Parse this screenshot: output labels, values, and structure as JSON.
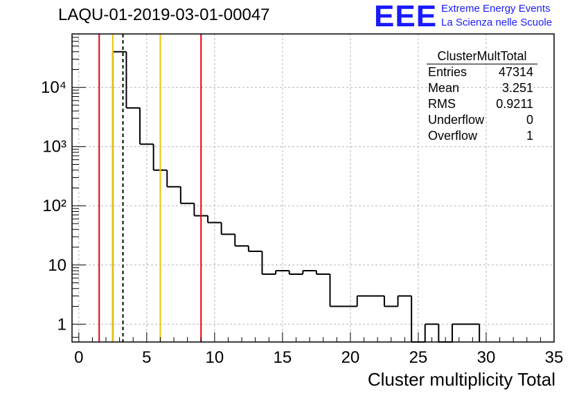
{
  "run_title": "LAQU-01-2019-03-01-00047",
  "logo": {
    "mark": "EEE",
    "line1": "Extreme Energy Events",
    "line2": "La Scienza nelle Scuole"
  },
  "stats_box": {
    "name": "ClusterMultTotal",
    "rows": [
      {
        "label": "Entries",
        "value": "47314"
      },
      {
        "label": "Mean",
        "value": "3.251"
      },
      {
        "label": "RMS",
        "value": "0.9211"
      },
      {
        "label": "Underflow",
        "value": "0"
      },
      {
        "label": "Overflow",
        "value": "1"
      }
    ]
  },
  "colors": {
    "histogram": "#000000",
    "red_line": "#e8000b",
    "yellow_line": "#f2c200",
    "grid": "#b4b4b4"
  },
  "chart_data": {
    "type": "histogram",
    "title": "LAQU-01-2019-03-01-00047",
    "xlabel": "Cluster multiplicity Total",
    "ylabel": "",
    "yscale": "log",
    "xlim": [
      -0.5,
      35
    ],
    "ylim": [
      0.5,
      80000
    ],
    "grid": true,
    "x_ticks": [
      0,
      5,
      10,
      15,
      20,
      25,
      30,
      35
    ],
    "y_ticks": [
      {
        "value": 1,
        "label": "1"
      },
      {
        "value": 10,
        "label": "10"
      },
      {
        "value": 100,
        "label": "10²"
      },
      {
        "value": 1000,
        "label": "10³"
      },
      {
        "value": 10000,
        "label": "10⁴"
      }
    ],
    "bin_width": 1,
    "bins": [
      {
        "center": 3,
        "count": 40000
      },
      {
        "center": 4,
        "count": 4500
      },
      {
        "center": 5,
        "count": 1100
      },
      {
        "center": 6,
        "count": 400
      },
      {
        "center": 7,
        "count": 210
      },
      {
        "center": 8,
        "count": 110
      },
      {
        "center": 9,
        "count": 68
      },
      {
        "center": 10,
        "count": 52
      },
      {
        "center": 11,
        "count": 33
      },
      {
        "center": 12,
        "count": 21
      },
      {
        "center": 13,
        "count": 17
      },
      {
        "center": 14,
        "count": 7
      },
      {
        "center": 15,
        "count": 8
      },
      {
        "center": 16,
        "count": 7
      },
      {
        "center": 17,
        "count": 8
      },
      {
        "center": 18,
        "count": 7
      },
      {
        "center": 19,
        "count": 2
      },
      {
        "center": 20,
        "count": 2
      },
      {
        "center": 21,
        "count": 3
      },
      {
        "center": 22,
        "count": 3
      },
      {
        "center": 23,
        "count": 2
      },
      {
        "center": 24,
        "count": 3
      },
      {
        "center": 25,
        "count": 0
      },
      {
        "center": 26,
        "count": 1
      },
      {
        "center": 27,
        "count": 0
      },
      {
        "center": 28,
        "count": 1
      },
      {
        "center": 29,
        "count": 1
      }
    ],
    "vertical_lines": [
      {
        "name": "red-line-low",
        "x": 1.5,
        "color": "red"
      },
      {
        "name": "yellow-line-low",
        "x": 2.5,
        "color": "yellow"
      },
      {
        "name": "mean-dashed-line",
        "x": 3.25,
        "color": "black-dashed"
      },
      {
        "name": "yellow-line-high",
        "x": 6.0,
        "color": "yellow"
      },
      {
        "name": "red-line-high",
        "x": 9.0,
        "color": "red"
      }
    ]
  }
}
